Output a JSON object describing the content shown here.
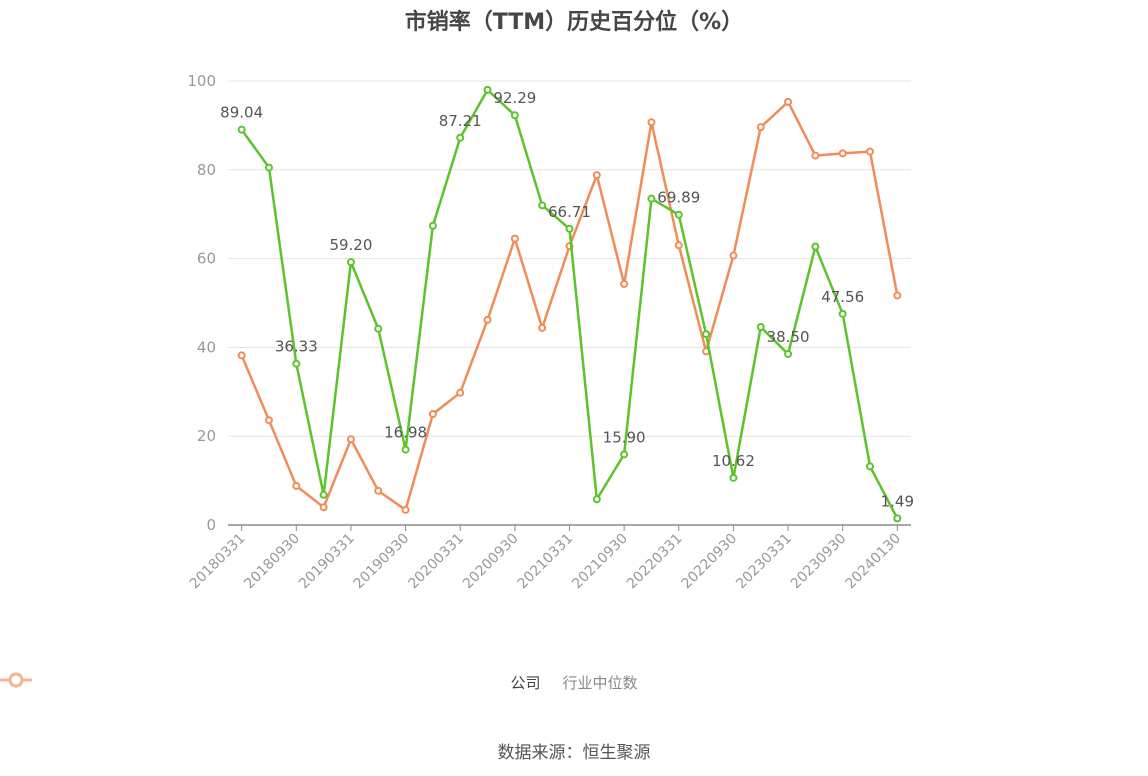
{
  "source_label": "数据来源：恒生聚源",
  "chart_data": {
    "type": "line",
    "title": "市销率（TTM）历史百分位（%）",
    "xlabel": "",
    "ylabel": "",
    "ylim": [
      0,
      100
    ],
    "yticks": [
      0,
      20,
      40,
      60,
      80,
      100
    ],
    "grid": true,
    "legend_placement": "bottom",
    "x": [
      "20180331",
      "20180630",
      "20180930",
      "20181231",
      "20190331",
      "20190630",
      "20190930",
      "20191231",
      "20200331",
      "20200630",
      "20200930",
      "20201231",
      "20210331",
      "20210630",
      "20210930",
      "20211231",
      "20220331",
      "20220630",
      "20220930",
      "20221231",
      "20230331",
      "20230630",
      "20230930",
      "20231231",
      "20240130"
    ],
    "xtick_labels": [
      "20180331",
      "20180930",
      "20190331",
      "20190930",
      "20200331",
      "20200930",
      "20210331",
      "20210930",
      "20220331",
      "20220930",
      "20230331",
      "20230930",
      "20240130"
    ],
    "series": [
      {
        "name": "公司",
        "color": "#5ac42a",
        "values": [
          89.04,
          80.5,
          36.33,
          6.8,
          59.2,
          44.2,
          16.98,
          67.4,
          87.21,
          98.0,
          92.29,
          72.0,
          66.71,
          5.8,
          15.9,
          73.5,
          69.89,
          43.0,
          10.62,
          44.6,
          38.5,
          62.7,
          47.56,
          13.2,
          1.49
        ],
        "labels": {
          "0": "89.04",
          "2": "36.33",
          "4": "59.20",
          "6": "16.98",
          "8": "87.21",
          "10": "92.29",
          "12": "66.71",
          "14": "15.90",
          "16": "69.89",
          "18": "10.62",
          "20": "38.50",
          "22": "47.56",
          "24": "1.49"
        }
      },
      {
        "name": "行业中位数",
        "color": "#f08c58",
        "values": [
          38.2,
          23.6,
          8.8,
          4.0,
          19.3,
          7.7,
          3.4,
          25.0,
          29.8,
          46.2,
          64.5,
          44.4,
          62.8,
          78.8,
          54.3,
          90.7,
          63.0,
          39.1,
          60.7,
          89.6,
          95.3,
          83.2,
          83.7,
          84.1,
          51.7
        ]
      }
    ]
  }
}
